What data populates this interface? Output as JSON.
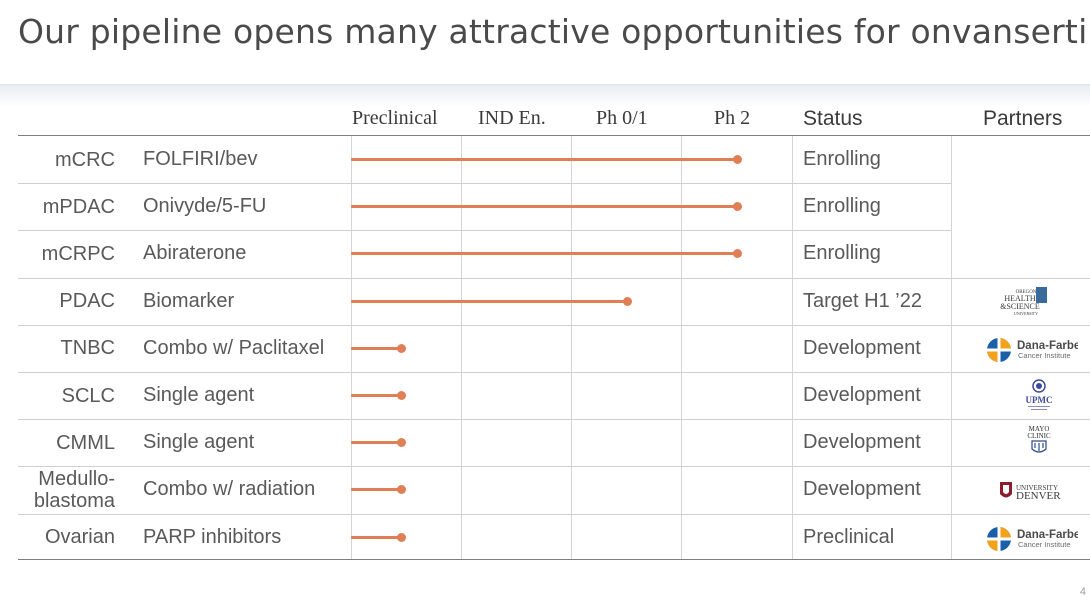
{
  "title": "Our pipeline opens many attractive opportunities for onvansertib",
  "header": {
    "phases": [
      "Preclinical",
      "IND En.",
      "Ph 0/1",
      "Ph 2"
    ],
    "status": "Status",
    "partners": "Partners"
  },
  "colors": {
    "bar": "#e07f56",
    "dana_blue": "#1a5fa8",
    "dana_orange": "#f3a21c",
    "ohsu_blue": "#3a6a9a",
    "denver_red": "#8b1e2d"
  },
  "rows": [
    {
      "indication": "mCRC",
      "treatment": "FOLFIRI/bev",
      "phase_progress": 3.5,
      "status": "Enrolling",
      "partner": ""
    },
    {
      "indication": "mPDAC",
      "treatment": "Onivyde/5-FU",
      "phase_progress": 3.5,
      "status": "Enrolling",
      "partner": ""
    },
    {
      "indication": "mCRPC",
      "treatment": "Abiraterone",
      "phase_progress": 3.5,
      "status": "Enrolling",
      "partner": ""
    },
    {
      "indication": "PDAC",
      "treatment": "Biomarker",
      "phase_progress": 2.5,
      "status": "Target H1 ’22",
      "partner": "ohsu"
    },
    {
      "indication": "TNBC",
      "treatment": "Combo w/ Paclitaxel",
      "phase_progress": 0.45,
      "status": "Development",
      "partner": "dana-farber"
    },
    {
      "indication": "SCLC",
      "treatment": "Single agent",
      "phase_progress": 0.45,
      "status": "Development",
      "partner": "upmc"
    },
    {
      "indication": "CMML",
      "treatment": "Single agent",
      "phase_progress": 0.45,
      "status": "Development",
      "partner": "mayo"
    },
    {
      "indication": "Medullo-\nblastoma",
      "treatment": "Combo w/ radiation",
      "phase_progress": 0.45,
      "status": "Development",
      "partner": "denver"
    },
    {
      "indication": "Ovarian",
      "treatment": "PARP inhibitors",
      "phase_progress": 0.45,
      "status": "Preclinical",
      "partner": "dana-farber"
    }
  ],
  "logos": {
    "ohsu": {
      "line1": "OREGON",
      "line2": "HEALTH",
      "line3": "&SCIENCE",
      "line4": "UNIVERSITY"
    },
    "dana": {
      "line1": "Dana-Farber",
      "line2": "Cancer Institute"
    },
    "upmc": {
      "line1": "UPMC"
    },
    "mayo": {
      "line1": "MAYO",
      "line2": "CLINIC"
    },
    "denver": {
      "line1": "UNIVERSITY",
      "line2": "DENVER"
    }
  },
  "page_number": "4"
}
